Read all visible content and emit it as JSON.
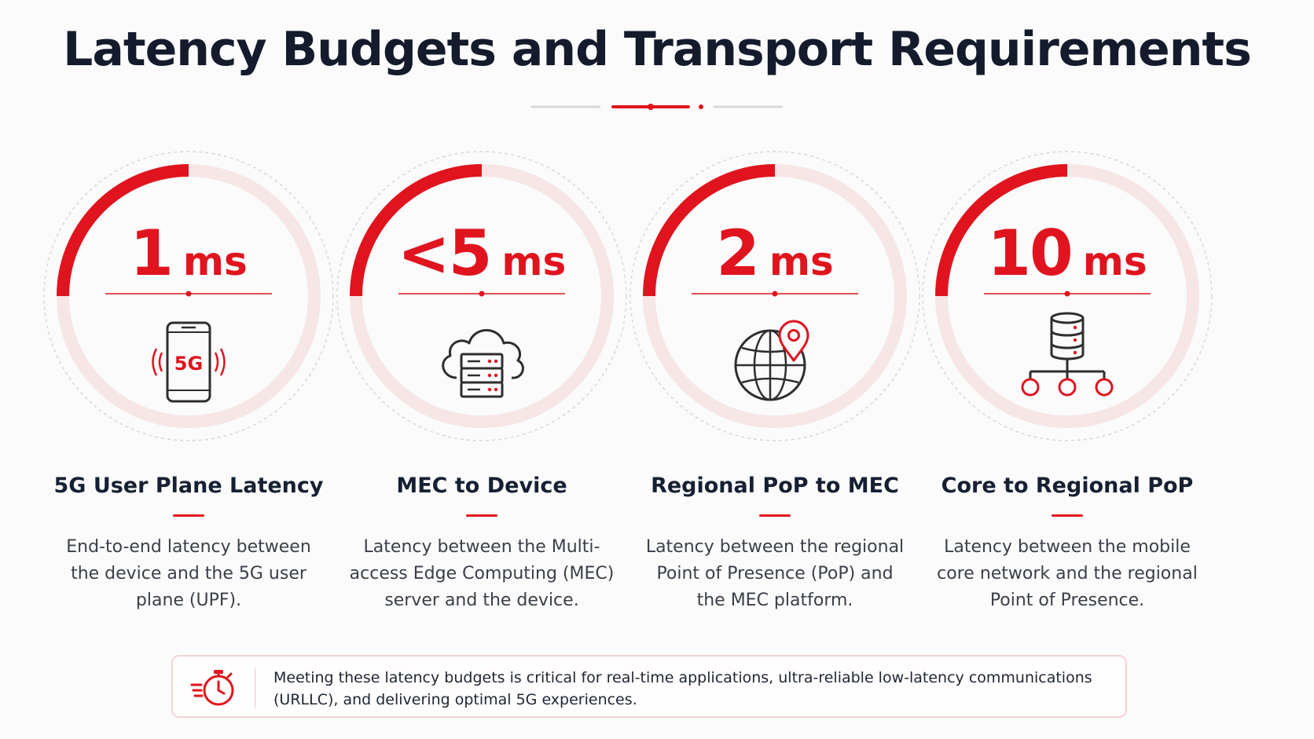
{
  "title": "Latency Budgets and Transport Requirements",
  "accent_color": "#e0141e",
  "cards": [
    {
      "value": "1",
      "unit": "ms",
      "icon": "smartphone-5g-icon",
      "icon_label": "5G",
      "title": "5G User Plane Latency",
      "description": "End-to-end latency between the device and the 5G user plane (UPF)."
    },
    {
      "value": "<5",
      "unit": "ms",
      "icon": "cloud-server-icon",
      "title": "MEC to Device",
      "description": "Latency between the Multi-access Edge Computing (MEC) server and the device."
    },
    {
      "value": "2",
      "unit": "ms",
      "icon": "globe-location-pin-icon",
      "title": "Regional PoP to MEC",
      "description": "Latency between the regional Point of Presence (PoP) and the MEC platform."
    },
    {
      "value": "10",
      "unit": "ms",
      "icon": "database-network-icon",
      "title": "Core to Regional PoP",
      "description": "Latency between the mobile core network and the regional Point of Presence."
    }
  ],
  "note": {
    "icon": "stopwatch-speed-icon",
    "text": "Meeting these latency budgets is critical for real-time applications, ultra-reliable low-latency communications (URLLC), and delivering optimal 5G experiences."
  }
}
